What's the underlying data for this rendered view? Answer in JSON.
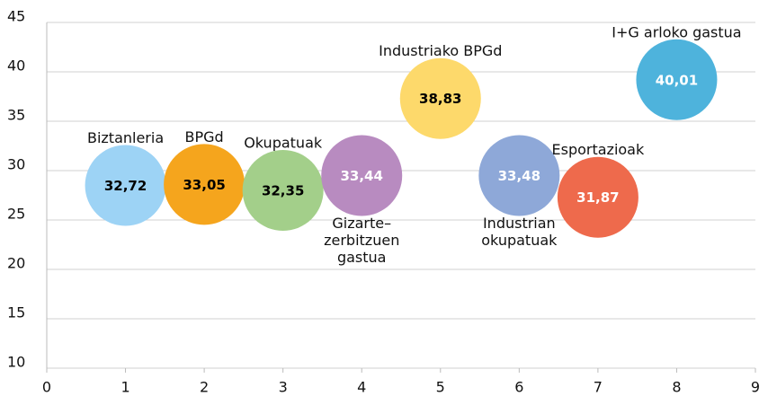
{
  "chart_data": {
    "type": "bubble",
    "x": [
      1,
      2,
      3,
      4,
      5,
      6,
      7,
      8
    ],
    "values": [
      28.5,
      28.6,
      28.0,
      29.5,
      37.3,
      29.5,
      27.3,
      39.2
    ],
    "sizes": [
      32.72,
      33.05,
      32.35,
      33.44,
      38.83,
      33.48,
      31.87,
      40.01
    ],
    "size_labels": [
      "32,72",
      "33,05",
      "32,35",
      "33,44",
      "38,83",
      "33,48",
      "31,87",
      "40,01"
    ],
    "names": [
      [
        "Biztanleria"
      ],
      [
        "BPGd"
      ],
      [
        "Okupatuak"
      ],
      [
        "Gizarte–",
        "zerbitzuen",
        "gastua"
      ],
      [
        "Industriako BPGd"
      ],
      [
        "Industrian",
        "okupatuak"
      ],
      [
        "Esportazioak"
      ],
      [
        "I+G arloko gastua"
      ]
    ],
    "name_positions": [
      "above",
      "above",
      "above",
      "below",
      "above",
      "below",
      "above",
      "above"
    ],
    "colors": [
      "#9dd3f5",
      "#f5a51d",
      "#a3cf8a",
      "#b88bc0",
      "#fdd96b",
      "#8ea8d8",
      "#ee6a4c",
      "#4eb3dc"
    ],
    "size_label_colors": [
      "#000000",
      "#000000",
      "#000000",
      "#ffffff",
      "#000000",
      "#ffffff",
      "#ffffff",
      "#ffffff"
    ],
    "xlim": [
      0,
      9
    ],
    "xticks": [
      0,
      1,
      2,
      3,
      4,
      5,
      6,
      7,
      8,
      9
    ],
    "ylim": [
      10,
      45
    ],
    "yticks": [
      10,
      15,
      20,
      25,
      30,
      35,
      40,
      45
    ],
    "grid": true
  }
}
